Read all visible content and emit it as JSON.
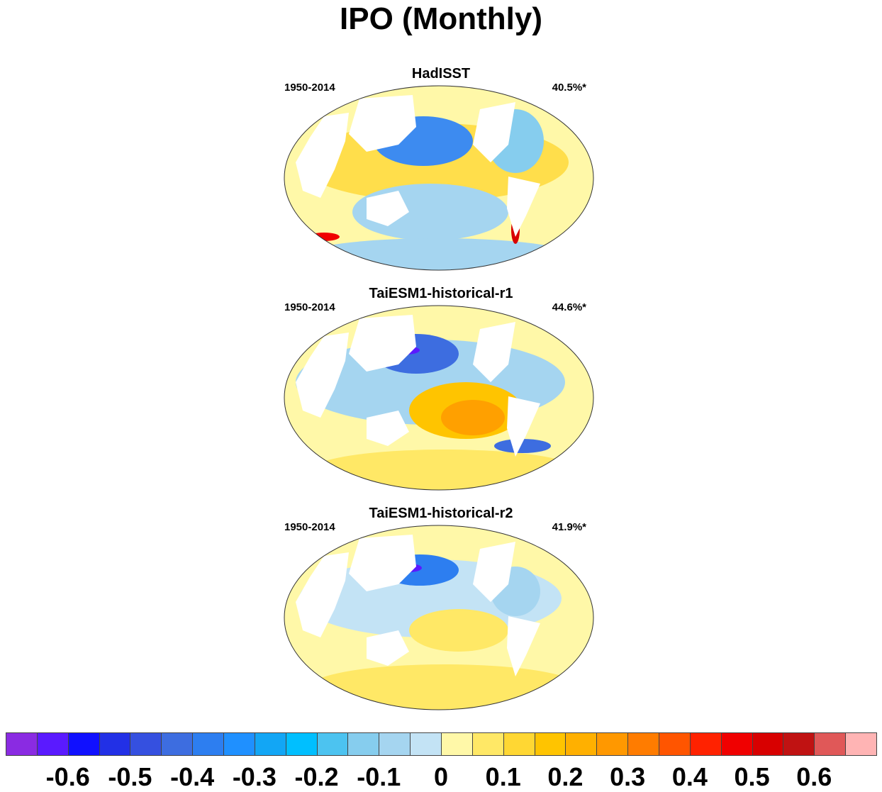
{
  "title": "IPO (Monthly)",
  "panels": [
    {
      "title": "HadISST",
      "period": "1950-2014",
      "variance": "40.5%*"
    },
    {
      "title": "TaiESM1-historical-r1",
      "period": "1950-2014",
      "variance": "44.6%*"
    },
    {
      "title": "TaiESM1-historical-r2",
      "period": "1950-2014",
      "variance": "41.9%*"
    }
  ],
  "colorbar": {
    "colors": [
      "#8a2be2",
      "#5a1aff",
      "#1010ff",
      "#2230e6",
      "#3550e0",
      "#3d6de0",
      "#2d7ef0",
      "#1f90ff",
      "#12a6f5",
      "#00bfff",
      "#4cc3f0",
      "#86cdee",
      "#a5d5f0",
      "#c3e3f5",
      "#fff8a8",
      "#ffe866",
      "#ffd733",
      "#ffc400",
      "#ffb000",
      "#ff9800",
      "#ff7c00",
      "#ff5500",
      "#ff2200",
      "#f00000",
      "#d80000",
      "#c01212",
      "#e05858",
      "#ffb4b4"
    ],
    "labels": [
      "-0.6",
      "-0.5",
      "-0.4",
      "-0.3",
      "-0.2",
      "-0.1",
      "0",
      "0.1",
      "0.2",
      "0.3",
      "0.4",
      "0.5",
      "0.6"
    ]
  }
}
